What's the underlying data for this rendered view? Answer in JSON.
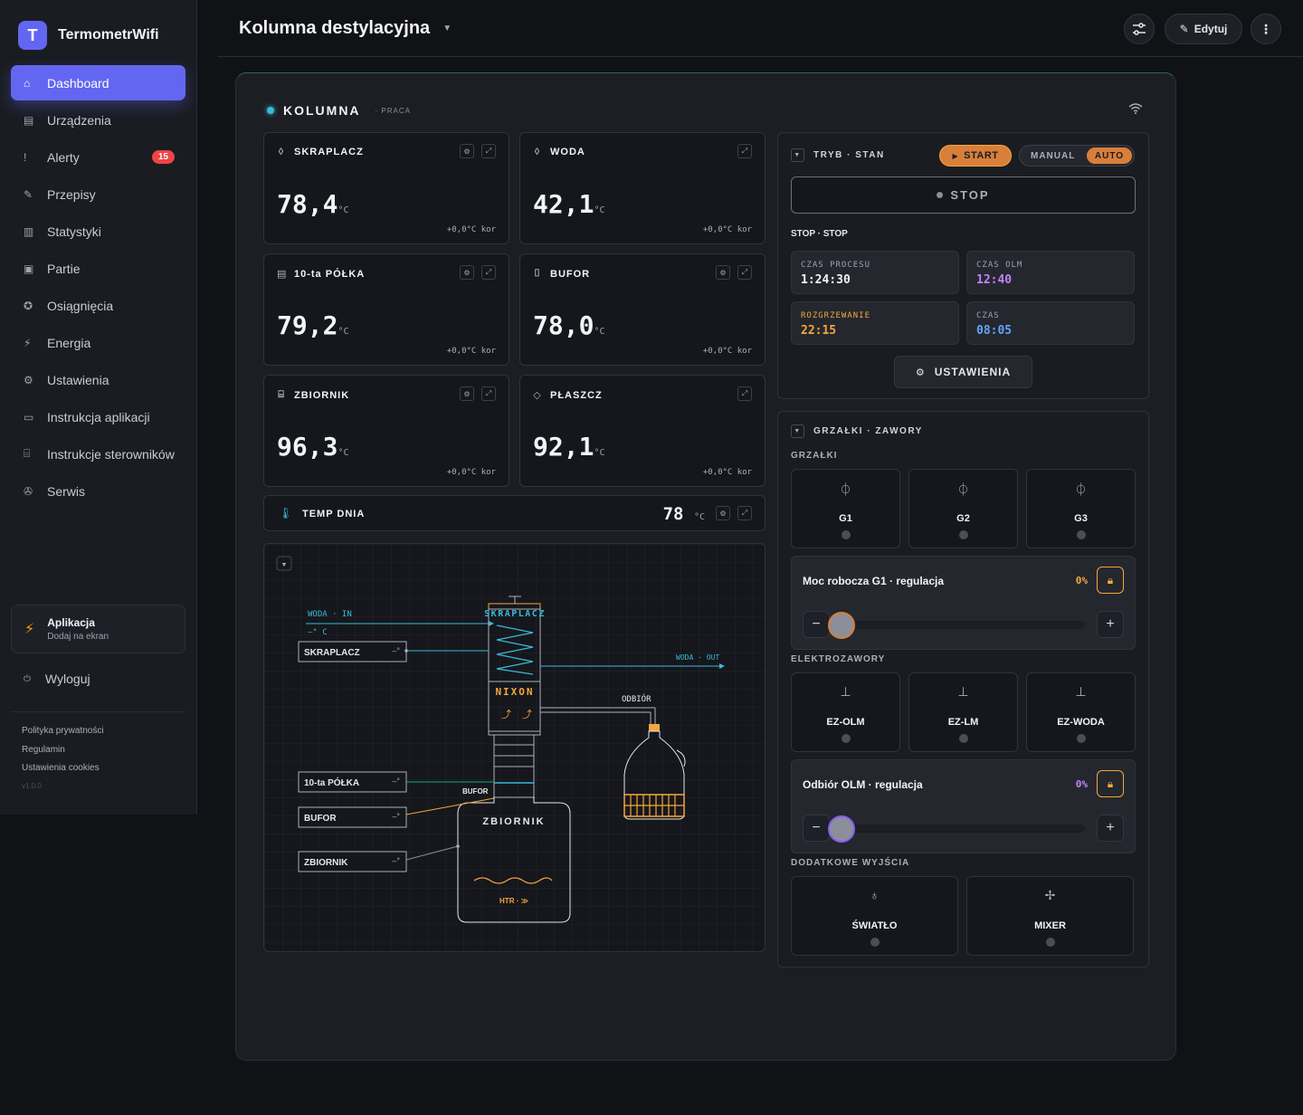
{
  "app": {
    "logo_letter": "T",
    "name": "TermometrWifi"
  },
  "sidebar": {
    "items": [
      {
        "icon": "⌂",
        "label": "Dashboard",
        "active": true
      },
      {
        "icon": "▤",
        "label": "Urządzenia"
      },
      {
        "icon": "!",
        "label": "Alerty",
        "badge": "15"
      },
      {
        "icon": "✎",
        "label": "Przepisy"
      },
      {
        "icon": "▥",
        "label": "Statystyki"
      },
      {
        "icon": "▣",
        "label": "Partie"
      },
      {
        "icon": "✪",
        "label": "Osiągnięcia"
      },
      {
        "icon": "⚡",
        "label": "Energia"
      },
      {
        "icon": "⚙",
        "label": "Ustawienia"
      },
      {
        "icon": "▭",
        "label": "Instrukcja aplikacji"
      },
      {
        "icon": "⌸",
        "label": "Instrukcje sterowników"
      },
      {
        "icon": "✇",
        "label": "Serwis"
      }
    ],
    "install": {
      "title": "Aplikacja",
      "subtitle": "Dodaj na ekran"
    },
    "logout": "Wyloguj",
    "legal": [
      "Polityka prywatności",
      "Regulamin",
      "Ustawienia cookies"
    ],
    "version": "v1.0.0"
  },
  "header": {
    "title": "Kolumna destylacyjna",
    "edit_label": "Edytuj"
  },
  "panel": {
    "title": "KOLUMNA",
    "sub": "· PRACA"
  },
  "sensors": [
    {
      "icon": "◊",
      "label": "SKRAPLACZ",
      "value": "78,4",
      "unit": "°C",
      "kor": "+0,0°C kor"
    },
    {
      "icon": "◊",
      "label": "WODA",
      "value": "42,1",
      "unit": "°C",
      "kor": "+0,0°C kor"
    },
    {
      "icon": "▤",
      "label": "10-ta PÓŁKA",
      "value": "79,2",
      "unit": "°C",
      "kor": "+0,0°C kor"
    },
    {
      "icon": "⌷",
      "label": "BUFOR",
      "value": "78,0",
      "unit": "°C",
      "kor": "+0,0°C kor"
    },
    {
      "icon": "⌸",
      "label": "ZBIORNIK",
      "value": "96,3",
      "unit": "°C",
      "kor": "+0,0°C kor"
    },
    {
      "icon": "◇",
      "label": "PŁASZCZ",
      "value": "92,1",
      "unit": "°C",
      "kor": "+0,0°C kor"
    }
  ],
  "temp_dnia": {
    "label": "TEMP DNIA",
    "value": "78",
    "unit": "°C"
  },
  "diagram": {
    "woda_in": "WODA · IN",
    "woda_in_val": "–° C",
    "woda_out": "WODA · OUT",
    "skraplacz_top": "SKRAPLACZ",
    "nixon": "NIXON",
    "odbior": "ODBIÓR",
    "bufor_small": "BUFOR",
    "zbiornik_tank": "ZBIORNIK",
    "htr": "HTR · ≫",
    "tags": [
      {
        "label": "SKRAPLACZ",
        "val": "–°"
      },
      {
        "label": "10-ta PÓŁKA",
        "val": "–°"
      },
      {
        "label": "BUFOR",
        "val": "–°"
      },
      {
        "label": "ZBIORNIK",
        "val": "–°"
      }
    ]
  },
  "mode": {
    "title": "TRYB · STAN",
    "start": "START",
    "manual": "MANUAL",
    "auto": "AUTO",
    "stop": "STOP",
    "state_line": "STOP · STOP",
    "stats": [
      {
        "label": "CZAS PROCESU",
        "value": "1:24:30",
        "color": "#f3f4f6"
      },
      {
        "label": "CZAS OLM",
        "value": "12:40",
        "color": "#c084fc"
      },
      {
        "label": "ROZGRZEWANIE",
        "value": "22:15",
        "color": "#f5a73b",
        "label_color": "#f5a73b"
      },
      {
        "label": "CZAS",
        "value": "08:05",
        "color": "#60a5fa"
      }
    ],
    "settings": "USTAWIENIA"
  },
  "heaters": {
    "title": "GRZAŁKI · ZAWORY",
    "grzalki_label": "GRZAŁKI",
    "grzalki": [
      "G1",
      "G2",
      "G3"
    ],
    "moc": {
      "title": "Moc robocza G1 · regulacja",
      "value": "0%",
      "color": "#f5a73b"
    },
    "ez_label": "ELEKTROZAWORY",
    "ez": [
      "EZ-OLM",
      "EZ-LM",
      "EZ-WODA"
    ],
    "odbior": {
      "title": "Odbiór OLM · regulacja",
      "value": "0%",
      "color": "#c084fc"
    },
    "extra_label": "DODATKOWE WYJŚCIA",
    "extra": [
      {
        "icon": "♁",
        "label": "ŚWIATŁO"
      },
      {
        "icon": "✢",
        "label": "MIXER"
      }
    ]
  }
}
